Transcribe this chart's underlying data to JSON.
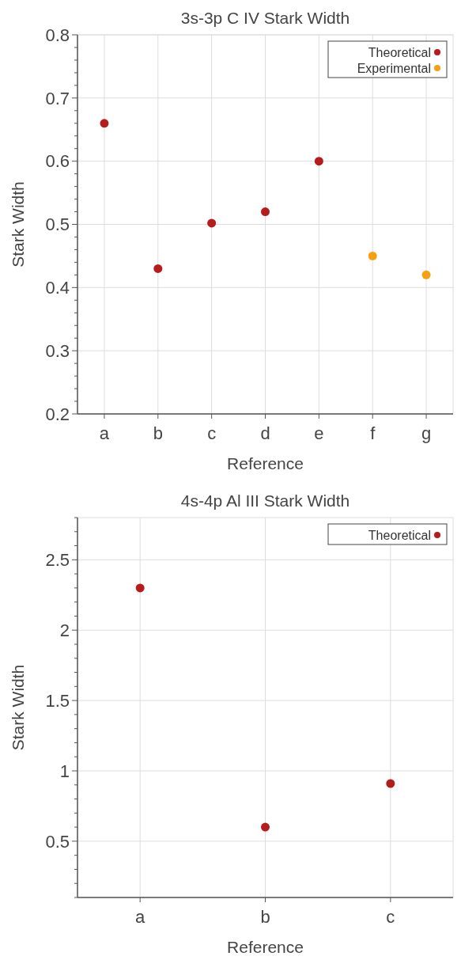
{
  "chart_data": [
    {
      "type": "scatter",
      "title": "3s-3p C IV Stark Width",
      "xlabel": "Reference",
      "ylabel": "Stark Width",
      "categories": [
        "a",
        "b",
        "c",
        "d",
        "e",
        "f",
        "g"
      ],
      "series": [
        {
          "name": "Theoretical",
          "color": "#b71c1c",
          "values": [
            0.66,
            0.43,
            0.502,
            0.52,
            0.6,
            null,
            null
          ]
        },
        {
          "name": "Experimental",
          "color": "#f5a011",
          "values": [
            null,
            null,
            null,
            null,
            null,
            0.45,
            0.42
          ]
        }
      ],
      "ylim": [
        0.2,
        0.8
      ],
      "yticks": [
        0.2,
        {
          "value": 0.22,
          "label": null
        },
        {
          "value": 0.24,
          "label": null
        },
        {
          "value": 0.26,
          "label": null
        },
        {
          "value": 0.28,
          "label": null
        },
        0.3,
        {
          "value": 0.32,
          "label": null
        },
        {
          "value": 0.34,
          "label": null
        },
        {
          "value": 0.36,
          "label": null
        },
        {
          "value": 0.38,
          "label": null
        },
        0.4,
        {
          "value": 0.42,
          "label": null
        },
        {
          "value": 0.44,
          "label": null
        },
        {
          "value": 0.46,
          "label": null
        },
        {
          "value": 0.48,
          "label": null
        },
        0.5,
        {
          "value": 0.52,
          "label": null
        },
        {
          "value": 0.54,
          "label": null
        },
        {
          "value": 0.56,
          "label": null
        },
        {
          "value": 0.58,
          "label": null
        },
        0.6,
        {
          "value": 0.62,
          "label": null
        },
        {
          "value": 0.64,
          "label": null
        },
        {
          "value": 0.66,
          "label": null
        },
        {
          "value": 0.68,
          "label": null
        },
        0.7,
        {
          "value": 0.72,
          "label": null
        },
        {
          "value": 0.74,
          "label": null
        },
        {
          "value": 0.76,
          "label": null
        },
        {
          "value": 0.78,
          "label": null
        },
        0.8
      ],
      "grid": true,
      "legend": "top right",
      "marker": "circle"
    },
    {
      "type": "scatter",
      "title": "4s-4p Al III Stark Width",
      "xlabel": "Reference",
      "ylabel": "Stark Width",
      "categories": [
        "a",
        "b",
        "c"
      ],
      "series": [
        {
          "name": "Theoretical",
          "color": "#b71c1c",
          "values": [
            2.3,
            0.6,
            0.91
          ]
        }
      ],
      "ylim": [
        0.1,
        2.8
      ],
      "yticks": [
        {
          "value": 0.1,
          "label": null
        },
        {
          "value": 0.2,
          "label": null
        },
        {
          "value": 0.3,
          "label": null
        },
        {
          "value": 0.4,
          "label": null
        },
        0.5,
        {
          "value": 0.6,
          "label": null
        },
        {
          "value": 0.7,
          "label": null
        },
        {
          "value": 0.8,
          "label": null
        },
        {
          "value": 0.9,
          "label": null
        },
        1,
        {
          "value": 1.1,
          "label": null
        },
        {
          "value": 1.2,
          "label": null
        },
        {
          "value": 1.3,
          "label": null
        },
        {
          "value": 1.4,
          "label": null
        },
        1.5,
        {
          "value": 1.6,
          "label": null
        },
        {
          "value": 1.7,
          "label": null
        },
        {
          "value": 1.8,
          "label": null
        },
        {
          "value": 1.9,
          "label": null
        },
        2,
        {
          "value": 2.1,
          "label": null
        },
        {
          "value": 2.2,
          "label": null
        },
        {
          "value": 2.3,
          "label": null
        },
        {
          "value": 2.4,
          "label": null
        },
        2.5,
        {
          "value": 2.6,
          "label": null
        },
        {
          "value": 2.7,
          "label": null
        },
        {
          "value": 2.8,
          "label": null
        }
      ],
      "grid": true,
      "legend": "top right",
      "marker": "circle"
    }
  ]
}
